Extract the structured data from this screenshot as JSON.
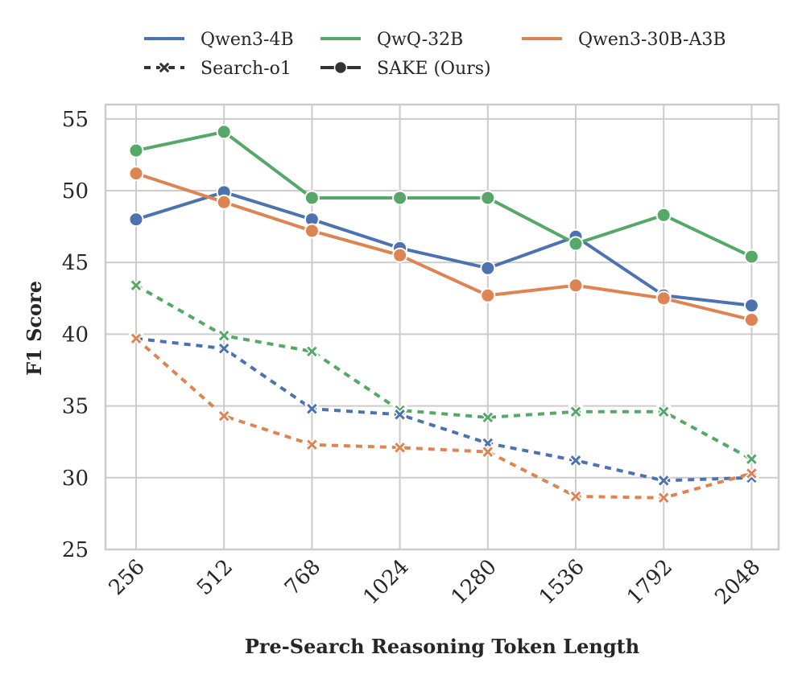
{
  "chart_data": {
    "type": "line",
    "title": "",
    "xlabel": "Pre-Search Reasoning Token Length",
    "ylabel": "F1 Score",
    "categories": [
      "256",
      "512",
      "768",
      "1024",
      "1280",
      "1536",
      "1792",
      "2048"
    ],
    "ylim": [
      25,
      56
    ],
    "yticks": [
      25,
      30,
      35,
      40,
      45,
      50,
      55
    ],
    "grid": true,
    "colors": {
      "Qwen3-4B": "#4c72b0",
      "QwQ-32B": "#55a868",
      "Qwen3-30B-A3B": "#dd8452",
      "grid": "#cccccc",
      "style_marker": "#333333"
    },
    "legend": {
      "placement": "top-center",
      "models": [
        "Qwen3-4B",
        "QwQ-32B",
        "Qwen3-30B-A3B"
      ],
      "styles": [
        "Search-o1",
        "SAKE (Ours)"
      ]
    },
    "series": [
      {
        "name": "QwQ-32B",
        "method": "Search-o1",
        "marker": "x",
        "dashed": true,
        "values": [
          43.4,
          39.9,
          38.8,
          34.7,
          34.2,
          34.6,
          34.6,
          31.3
        ]
      },
      {
        "name": "Qwen3-4B",
        "method": "Search-o1",
        "marker": "x",
        "dashed": true,
        "values": [
          39.7,
          39.0,
          34.8,
          34.4,
          32.4,
          31.2,
          29.8,
          30.0
        ]
      },
      {
        "name": "Qwen3-30B-A3B",
        "method": "Search-o1",
        "marker": "x",
        "dashed": true,
        "values": [
          39.7,
          34.3,
          32.3,
          32.1,
          31.8,
          28.7,
          28.6,
          30.3
        ]
      },
      {
        "name": "Qwen3-4B",
        "method": "SAKE (Ours)",
        "marker": "o",
        "dashed": false,
        "values": [
          48.0,
          49.9,
          48.0,
          46.0,
          44.6,
          46.8,
          42.7,
          42.0
        ]
      },
      {
        "name": "QwQ-32B",
        "method": "SAKE (Ours)",
        "marker": "o",
        "dashed": false,
        "values": [
          52.8,
          54.1,
          49.5,
          49.5,
          49.5,
          46.3,
          48.3,
          45.4
        ]
      },
      {
        "name": "Qwen3-30B-A3B",
        "method": "SAKE (Ours)",
        "marker": "o",
        "dashed": false,
        "values": [
          51.2,
          49.2,
          47.2,
          45.5,
          42.7,
          43.4,
          42.5,
          41.0
        ]
      }
    ]
  }
}
